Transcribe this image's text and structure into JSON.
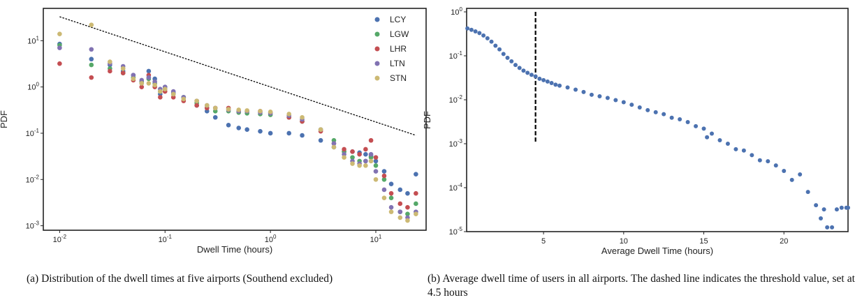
{
  "captions": {
    "a": "(a) Distribution of the dwell times at five airports (Southend excluded)",
    "b": "(b) Average dwell time of users in all airports. The dashed line indicates the threshold value, set at 4.5 hours"
  },
  "chart_data": [
    {
      "type": "scatter",
      "xscale": "log",
      "yscale": "log",
      "xlabel": "Dwell Time (hours)",
      "ylabel": "PDF",
      "xlim": [
        0.007,
        30
      ],
      "ylim": [
        0.0008,
        50
      ],
      "xticks": [
        0.01,
        0.1,
        1,
        10
      ],
      "xtick_labels": [
        "10^-2",
        "10^-1",
        "10^0",
        "10^1"
      ],
      "yticks": [
        0.001,
        0.01,
        0.1,
        1,
        10
      ],
      "ytick_labels": [
        "10^-3",
        "10^-2",
        "10^-1",
        "10^0",
        "10^1"
      ],
      "grid": false,
      "legend": "top-right",
      "reference_line": {
        "style": "dotted",
        "color": "#000000",
        "points": [
          [
            0.01,
            33
          ],
          [
            24,
            0.09
          ]
        ]
      },
      "series": [
        {
          "name": "LCY",
          "color": "#4c72b0",
          "points": [
            [
              0.01,
              8.5
            ],
            [
              0.02,
              4.0
            ],
            [
              0.03,
              3.0
            ],
            [
              0.04,
              2.2
            ],
            [
              0.05,
              1.8
            ],
            [
              0.06,
              1.2
            ],
            [
              0.07,
              2.2
            ],
            [
              0.08,
              1.5
            ],
            [
              0.09,
              0.7
            ],
            [
              0.1,
              1.0
            ],
            [
              0.12,
              0.75
            ],
            [
              0.15,
              0.6
            ],
            [
              0.2,
              0.4
            ],
            [
              0.25,
              0.3
            ],
            [
              0.3,
              0.22
            ],
            [
              0.4,
              0.15
            ],
            [
              0.5,
              0.13
            ],
            [
              0.6,
              0.12
            ],
            [
              0.8,
              0.11
            ],
            [
              1.0,
              0.1
            ],
            [
              1.5,
              0.1
            ],
            [
              2.0,
              0.09
            ],
            [
              3.0,
              0.07
            ],
            [
              4.0,
              0.05
            ],
            [
              5.0,
              0.04
            ],
            [
              6.0,
              0.04
            ],
            [
              7.0,
              0.038
            ],
            [
              8.0,
              0.035
            ],
            [
              9.0,
              0.032
            ],
            [
              10.0,
              0.025
            ],
            [
              12.0,
              0.015
            ],
            [
              14.0,
              0.008
            ],
            [
              17.0,
              0.006
            ],
            [
              20.0,
              0.005
            ],
            [
              24.0,
              0.013
            ]
          ]
        },
        {
          "name": "LGW",
          "color": "#55a868",
          "points": [
            [
              0.01,
              8.0
            ],
            [
              0.02,
              3.0
            ],
            [
              0.03,
              2.5
            ],
            [
              0.04,
              2.0
            ],
            [
              0.05,
              1.6
            ],
            [
              0.06,
              1.3
            ],
            [
              0.07,
              1.5
            ],
            [
              0.08,
              1.2
            ],
            [
              0.09,
              0.8
            ],
            [
              0.1,
              0.9
            ],
            [
              0.12,
              0.7
            ],
            [
              0.15,
              0.6
            ],
            [
              0.2,
              0.45
            ],
            [
              0.25,
              0.35
            ],
            [
              0.3,
              0.3
            ],
            [
              0.4,
              0.3
            ],
            [
              0.5,
              0.28
            ],
            [
              0.6,
              0.27
            ],
            [
              0.8,
              0.26
            ],
            [
              1.0,
              0.25
            ],
            [
              1.5,
              0.22
            ],
            [
              2.0,
              0.18
            ],
            [
              3.0,
              0.12
            ],
            [
              4.0,
              0.07
            ],
            [
              5.0,
              0.04
            ],
            [
              6.0,
              0.03
            ],
            [
              7.0,
              0.025
            ],
            [
              8.0,
              0.025
            ],
            [
              9.0,
              0.03
            ],
            [
              10.0,
              0.02
            ],
            [
              12.0,
              0.01
            ],
            [
              14.0,
              0.004
            ],
            [
              17.0,
              0.002
            ],
            [
              20.0,
              0.0018
            ],
            [
              24.0,
              0.003
            ]
          ]
        },
        {
          "name": "LHR",
          "color": "#c44e52",
          "points": [
            [
              0.01,
              3.2
            ],
            [
              0.02,
              1.6
            ],
            [
              0.03,
              2.2
            ],
            [
              0.04,
              2.0
            ],
            [
              0.05,
              1.4
            ],
            [
              0.06,
              1.0
            ],
            [
              0.07,
              1.8
            ],
            [
              0.08,
              1.0
            ],
            [
              0.09,
              0.6
            ],
            [
              0.1,
              0.8
            ],
            [
              0.12,
              0.6
            ],
            [
              0.15,
              0.5
            ],
            [
              0.2,
              0.4
            ],
            [
              0.25,
              0.35
            ],
            [
              0.3,
              0.35
            ],
            [
              0.4,
              0.35
            ],
            [
              0.5,
              0.3
            ],
            [
              0.6,
              0.3
            ],
            [
              0.8,
              0.3
            ],
            [
              1.0,
              0.28
            ],
            [
              1.5,
              0.22
            ],
            [
              2.0,
              0.18
            ],
            [
              3.0,
              0.11
            ],
            [
              4.0,
              0.06
            ],
            [
              5.0,
              0.045
            ],
            [
              6.0,
              0.04
            ],
            [
              7.0,
              0.035
            ],
            [
              8.0,
              0.045
            ],
            [
              9.0,
              0.07
            ],
            [
              10.0,
              0.03
            ],
            [
              12.0,
              0.012
            ],
            [
              14.0,
              0.005
            ],
            [
              17.0,
              0.003
            ],
            [
              20.0,
              0.0025
            ],
            [
              24.0,
              0.005
            ]
          ]
        },
        {
          "name": "LTN",
          "color": "#8172b2",
          "points": [
            [
              0.01,
              7.0
            ],
            [
              0.02,
              6.5
            ],
            [
              0.03,
              3.2
            ],
            [
              0.04,
              2.8
            ],
            [
              0.05,
              1.8
            ],
            [
              0.06,
              1.4
            ],
            [
              0.07,
              1.6
            ],
            [
              0.08,
              1.3
            ],
            [
              0.09,
              0.9
            ],
            [
              0.1,
              1.0
            ],
            [
              0.12,
              0.8
            ],
            [
              0.15,
              0.6
            ],
            [
              0.2,
              0.5
            ],
            [
              0.25,
              0.4
            ],
            [
              0.3,
              0.35
            ],
            [
              0.4,
              0.32
            ],
            [
              0.5,
              0.3
            ],
            [
              0.6,
              0.3
            ],
            [
              0.8,
              0.28
            ],
            [
              1.0,
              0.27
            ],
            [
              1.5,
              0.24
            ],
            [
              2.0,
              0.2
            ],
            [
              3.0,
              0.12
            ],
            [
              4.0,
              0.06
            ],
            [
              5.0,
              0.035
            ],
            [
              6.0,
              0.025
            ],
            [
              7.0,
              0.022
            ],
            [
              8.0,
              0.025
            ],
            [
              9.0,
              0.035
            ],
            [
              10.0,
              0.015
            ],
            [
              12.0,
              0.006
            ],
            [
              14.0,
              0.0025
            ],
            [
              17.0,
              0.002
            ],
            [
              20.0,
              0.0015
            ],
            [
              24.0,
              0.002
            ]
          ]
        },
        {
          "name": "STN",
          "color": "#ccb974",
          "points": [
            [
              0.01,
              14.0
            ],
            [
              0.02,
              22.0
            ],
            [
              0.03,
              3.5
            ],
            [
              0.04,
              2.5
            ],
            [
              0.05,
              1.5
            ],
            [
              0.06,
              1.2
            ],
            [
              0.07,
              1.2
            ],
            [
              0.08,
              1.1
            ],
            [
              0.09,
              0.8
            ],
            [
              0.1,
              0.9
            ],
            [
              0.12,
              0.7
            ],
            [
              0.15,
              0.55
            ],
            [
              0.2,
              0.5
            ],
            [
              0.25,
              0.4
            ],
            [
              0.3,
              0.35
            ],
            [
              0.4,
              0.33
            ],
            [
              0.5,
              0.32
            ],
            [
              0.6,
              0.31
            ],
            [
              0.8,
              0.3
            ],
            [
              1.0,
              0.29
            ],
            [
              1.5,
              0.26
            ],
            [
              2.0,
              0.22
            ],
            [
              3.0,
              0.12
            ],
            [
              4.0,
              0.05
            ],
            [
              5.0,
              0.03
            ],
            [
              6.0,
              0.022
            ],
            [
              7.0,
              0.02
            ],
            [
              8.0,
              0.02
            ],
            [
              9.0,
              0.025
            ],
            [
              10.0,
              0.01
            ],
            [
              12.0,
              0.004
            ],
            [
              14.0,
              0.002
            ],
            [
              17.0,
              0.0015
            ],
            [
              20.0,
              0.0013
            ],
            [
              24.0,
              0.0018
            ]
          ]
        }
      ]
    },
    {
      "type": "scatter",
      "xscale": "linear",
      "yscale": "log",
      "xlabel": "Average Dwell Time (hours)",
      "ylabel": "PDF",
      "xlim": [
        0.2,
        24
      ],
      "ylim": [
        1e-05,
        1.2
      ],
      "xticks": [
        5,
        10,
        15,
        20
      ],
      "xtick_labels": [
        "5",
        "10",
        "15",
        "20"
      ],
      "yticks": [
        1e-05,
        0.0001,
        0.001,
        0.01,
        0.1,
        1
      ],
      "ytick_labels": [
        "10^-5",
        "10^-4",
        "10^-3",
        "10^-2",
        "10^-1",
        "10^0"
      ],
      "grid": false,
      "color": "#4c72b0",
      "threshold": {
        "x": 4.5,
        "y_range": [
          0.001,
          1
        ],
        "style": "dashed",
        "color": "#000000"
      },
      "points": [
        [
          0.25,
          0.42
        ],
        [
          0.5,
          0.39
        ],
        [
          0.75,
          0.36
        ],
        [
          1.0,
          0.33
        ],
        [
          1.25,
          0.29
        ],
        [
          1.5,
          0.25
        ],
        [
          1.75,
          0.21
        ],
        [
          2.0,
          0.17
        ],
        [
          2.25,
          0.14
        ],
        [
          2.5,
          0.11
        ],
        [
          2.75,
          0.09
        ],
        [
          3.0,
          0.075
        ],
        [
          3.25,
          0.062
        ],
        [
          3.5,
          0.053
        ],
        [
          3.75,
          0.046
        ],
        [
          4.0,
          0.041
        ],
        [
          4.25,
          0.037
        ],
        [
          4.5,
          0.034
        ],
        [
          4.75,
          0.03
        ],
        [
          5.0,
          0.028
        ],
        [
          5.25,
          0.026
        ],
        [
          5.5,
          0.024
        ],
        [
          5.75,
          0.022
        ],
        [
          6.0,
          0.021
        ],
        [
          6.5,
          0.019
        ],
        [
          7.0,
          0.017
        ],
        [
          7.5,
          0.015
        ],
        [
          8.0,
          0.013
        ],
        [
          8.5,
          0.012
        ],
        [
          9.0,
          0.011
        ],
        [
          9.5,
          0.0098
        ],
        [
          10.0,
          0.0088
        ],
        [
          10.5,
          0.0077
        ],
        [
          11.0,
          0.0067
        ],
        [
          11.5,
          0.0058
        ],
        [
          12.0,
          0.0052
        ],
        [
          12.5,
          0.0047
        ],
        [
          13.0,
          0.0039
        ],
        [
          13.5,
          0.0036
        ],
        [
          14.0,
          0.0031
        ],
        [
          14.5,
          0.0025
        ],
        [
          15.0,
          0.0022
        ],
        [
          15.2,
          0.0014
        ],
        [
          15.5,
          0.0017
        ],
        [
          16.0,
          0.0012
        ],
        [
          16.5,
          0.001
        ],
        [
          17.0,
          0.00075
        ],
        [
          17.5,
          0.0007
        ],
        [
          18.0,
          0.00055
        ],
        [
          18.5,
          0.00042
        ],
        [
          19.0,
          0.0004
        ],
        [
          19.5,
          0.00032
        ],
        [
          20.0,
          0.00024
        ],
        [
          20.5,
          0.00015
        ],
        [
          21.0,
          0.0002
        ],
        [
          21.5,
          8e-05
        ],
        [
          22.0,
          4e-05
        ],
        [
          22.3,
          2e-05
        ],
        [
          22.5,
          3.2e-05
        ],
        [
          22.7,
          1.25e-05
        ],
        [
          23.0,
          1.25e-05
        ],
        [
          23.3,
          3.2e-05
        ],
        [
          23.6,
          3.5e-05
        ],
        [
          23.9,
          3.5e-05
        ],
        [
          24.0,
          3.5e-05
        ]
      ]
    }
  ]
}
